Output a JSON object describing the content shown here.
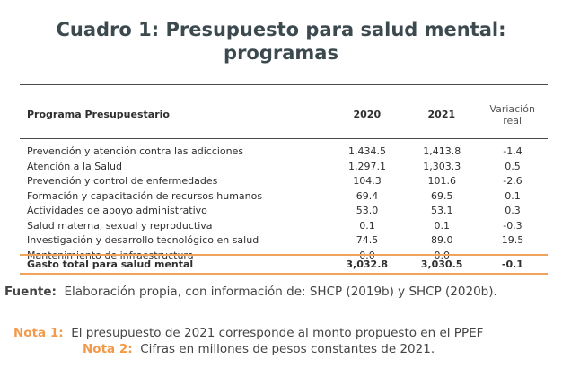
{
  "title_line1": "Cuadro 1: Presupuesto para salud mental:",
  "title_line2": "programas",
  "table": {
    "headers": [
      "Programa Presupuestario",
      "2020",
      "2021",
      "Variación real"
    ],
    "rows": [
      [
        "Prevención y atención contra las adicciones",
        "1,434.5",
        "1,413.8",
        "-1.4"
      ],
      [
        "Atención a la Salud",
        "1,297.1",
        "1,303.3",
        "0.5"
      ],
      [
        "Prevención y control de enfermedades",
        "104.3",
        "101.6",
        "-2.6"
      ],
      [
        "Formación y capacitación de recursos humanos",
        "69.4",
        "69.5",
        "0.1"
      ],
      [
        "Actividades de apoyo administrativo",
        "53.0",
        "53.1",
        "0.3"
      ],
      [
        "Salud materna, sexual y reproductiva",
        "0.1",
        "0.1",
        "-0.3"
      ],
      [
        "Investigación y desarrollo tecnológico en salud",
        "74.5",
        "89.0",
        "19.5"
      ],
      [
        "Mantenimiento de infraestructura",
        "0.0",
        "0.0",
        ""
      ]
    ],
    "total": [
      "Gasto total para salud mental",
      "3,032.8",
      "3,030.5",
      "-0.1"
    ]
  },
  "fuente": {
    "label": "Fuente:",
    "text": "Elaboración propia, con información de: SHCP (2019b) y SHCP (2020b)."
  },
  "nota1": {
    "label": "Nota 1:",
    "text": "El presupuesto de 2021 corresponde al monto propuesto en el PPEF"
  },
  "nota2": {
    "label": "Nota 2:",
    "text": "Cifras en millones de pesos constantes de 2021."
  },
  "colors": {
    "title": "#3c4a50",
    "accent": "#f39a4a",
    "rule": "#4a4a4a"
  }
}
